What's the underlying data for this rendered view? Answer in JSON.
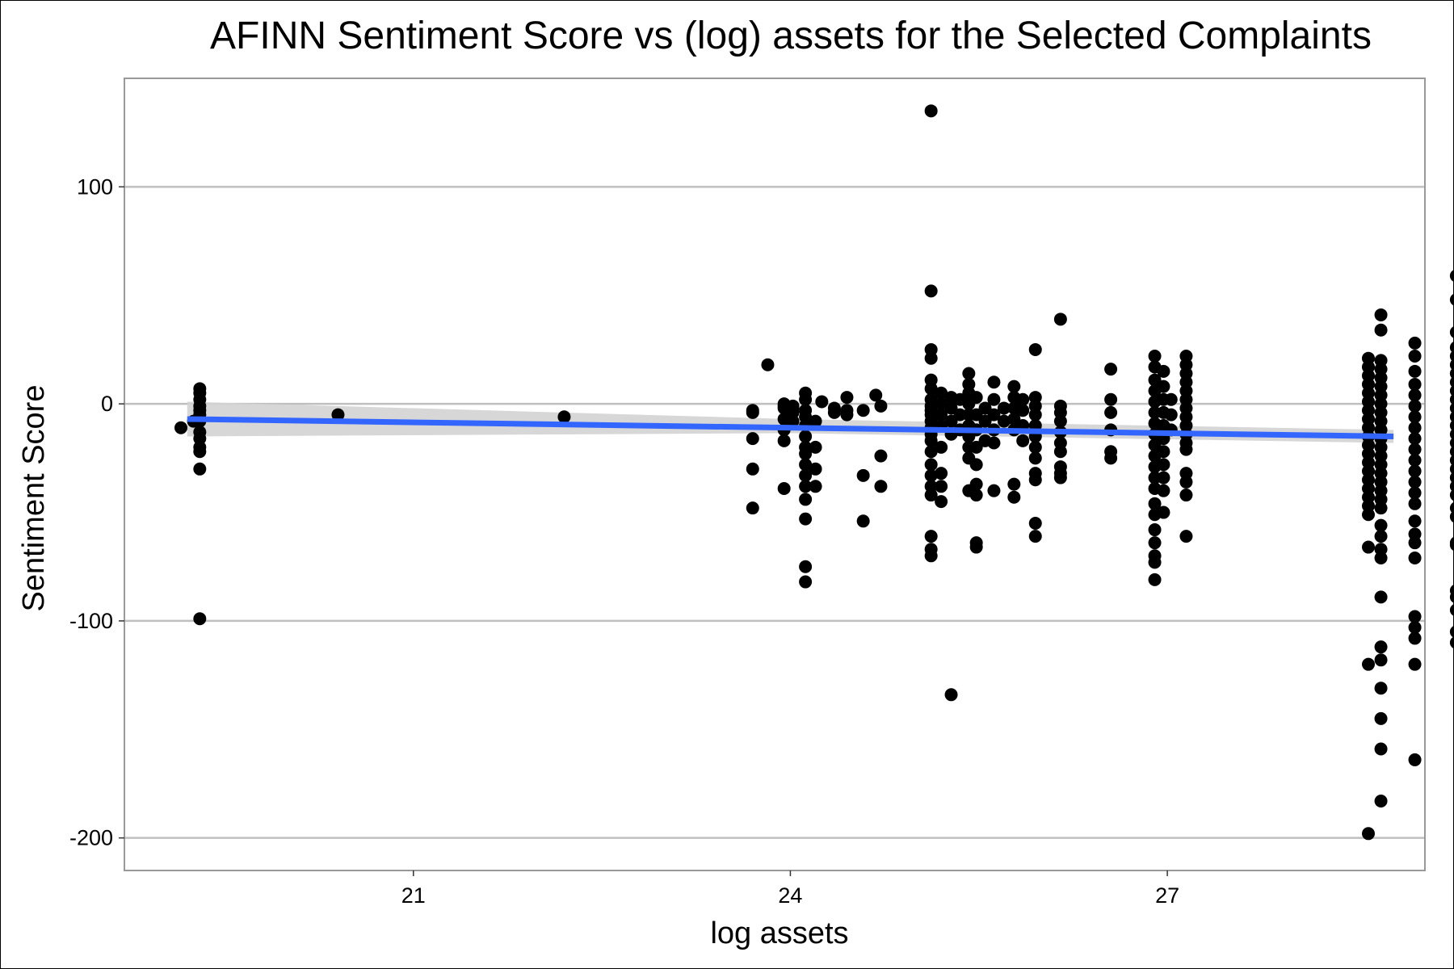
{
  "chart_data": {
    "type": "scatter",
    "title": "AFINN Sentiment Score vs (log) assets for the Selected Complaints",
    "xlabel": "log assets",
    "ylabel": "Sentiment Score",
    "xlim": [
      18.7,
      29.05
    ],
    "ylim": [
      -215,
      150
    ],
    "xticks": [
      21,
      24,
      27
    ],
    "yticks": [
      100,
      0,
      -100,
      -200
    ],
    "grid": "horizontal",
    "legend": "none",
    "colors": {
      "points": "#000000",
      "trend": "#3366ff",
      "ribbon": "#d3d3d3",
      "grid": "#bfbfbf",
      "panel_border": "#999999"
    },
    "trend": {
      "x_start": 19.2,
      "x_end": 28.8,
      "y_start": -7,
      "y_end": -15,
      "ci_start": [
        -15,
        1
      ],
      "ci_end": [
        -18,
        -12
      ],
      "ci_mid": [
        -13.5,
        -7
      ]
    },
    "points": [
      [
        19.15,
        -11
      ],
      [
        19.25,
        -8
      ],
      [
        19.3,
        7
      ],
      [
        19.3,
        5
      ],
      [
        19.3,
        2
      ],
      [
        19.3,
        -1
      ],
      [
        19.3,
        -3
      ],
      [
        19.3,
        -5
      ],
      [
        19.3,
        -8
      ],
      [
        19.3,
        -13
      ],
      [
        19.3,
        -16
      ],
      [
        19.3,
        -20
      ],
      [
        19.3,
        -22
      ],
      [
        19.3,
        -30
      ],
      [
        19.3,
        -99
      ],
      [
        20.4,
        -5
      ],
      [
        22.2,
        -6
      ],
      [
        23.7,
        -3
      ],
      [
        23.7,
        -4
      ],
      [
        23.7,
        -16
      ],
      [
        23.7,
        -30
      ],
      [
        23.7,
        -48
      ],
      [
        23.82,
        18
      ],
      [
        23.95,
        0
      ],
      [
        23.95,
        -1
      ],
      [
        23.95,
        -2
      ],
      [
        23.95,
        -7
      ],
      [
        23.95,
        -12
      ],
      [
        23.95,
        -17
      ],
      [
        23.95,
        -39
      ],
      [
        24.02,
        -1
      ],
      [
        24.02,
        -2
      ],
      [
        24.02,
        -4
      ],
      [
        24.02,
        -8
      ],
      [
        24.12,
        5
      ],
      [
        24.12,
        2
      ],
      [
        24.12,
        -3
      ],
      [
        24.12,
        -6
      ],
      [
        24.12,
        -10
      ],
      [
        24.12,
        -15
      ],
      [
        24.12,
        -20
      ],
      [
        24.12,
        -23
      ],
      [
        24.12,
        -28
      ],
      [
        24.12,
        -33
      ],
      [
        24.12,
        -38
      ],
      [
        24.12,
        -44
      ],
      [
        24.12,
        -53
      ],
      [
        24.12,
        -75
      ],
      [
        24.12,
        -82
      ],
      [
        24.2,
        -8
      ],
      [
        24.2,
        -20
      ],
      [
        24.2,
        -30
      ],
      [
        24.2,
        -38
      ],
      [
        24.25,
        1
      ],
      [
        24.35,
        -2
      ],
      [
        24.35,
        -4
      ],
      [
        24.45,
        3
      ],
      [
        24.45,
        -3
      ],
      [
        24.45,
        -5
      ],
      [
        24.58,
        -3
      ],
      [
        24.58,
        -33
      ],
      [
        24.58,
        -54
      ],
      [
        24.68,
        4
      ],
      [
        24.72,
        -1
      ],
      [
        24.72,
        -24
      ],
      [
        24.72,
        -38
      ],
      [
        25.12,
        135
      ],
      [
        25.12,
        52
      ],
      [
        25.12,
        25
      ],
      [
        25.12,
        21
      ],
      [
        25.12,
        11
      ],
      [
        25.12,
        7
      ],
      [
        25.12,
        2
      ],
      [
        25.12,
        -1
      ],
      [
        25.12,
        -3
      ],
      [
        25.12,
        -5
      ],
      [
        25.12,
        -8
      ],
      [
        25.12,
        -11
      ],
      [
        25.12,
        -14
      ],
      [
        25.12,
        -17
      ],
      [
        25.12,
        -22
      ],
      [
        25.12,
        -28
      ],
      [
        25.12,
        -33
      ],
      [
        25.12,
        -38
      ],
      [
        25.12,
        -42
      ],
      [
        25.12,
        -61
      ],
      [
        25.12,
        -67
      ],
      [
        25.12,
        -70
      ],
      [
        25.2,
        5
      ],
      [
        25.2,
        0
      ],
      [
        25.2,
        -5
      ],
      [
        25.2,
        -10
      ],
      [
        25.2,
        -20
      ],
      [
        25.2,
        -32
      ],
      [
        25.2,
        -38
      ],
      [
        25.2,
        -45
      ],
      [
        25.28,
        3
      ],
      [
        25.28,
        -2
      ],
      [
        25.28,
        -8
      ],
      [
        25.28,
        -14
      ],
      [
        25.28,
        -134
      ],
      [
        25.35,
        2
      ],
      [
        25.35,
        -5
      ],
      [
        25.35,
        -12
      ],
      [
        25.42,
        14
      ],
      [
        25.42,
        9
      ],
      [
        25.42,
        5
      ],
      [
        25.42,
        0
      ],
      [
        25.42,
        -5
      ],
      [
        25.42,
        -10
      ],
      [
        25.42,
        -15
      ],
      [
        25.42,
        -20
      ],
      [
        25.42,
        -25
      ],
      [
        25.42,
        -40
      ],
      [
        25.48,
        3
      ],
      [
        25.48,
        -5
      ],
      [
        25.48,
        -12
      ],
      [
        25.48,
        -20
      ],
      [
        25.48,
        -28
      ],
      [
        25.48,
        -37
      ],
      [
        25.48,
        -42
      ],
      [
        25.48,
        -64
      ],
      [
        25.48,
        -66
      ],
      [
        25.55,
        -2
      ],
      [
        25.55,
        -8
      ],
      [
        25.55,
        -17
      ],
      [
        25.62,
        10
      ],
      [
        25.62,
        2
      ],
      [
        25.62,
        -5
      ],
      [
        25.62,
        -12
      ],
      [
        25.62,
        -18
      ],
      [
        25.62,
        -40
      ],
      [
        25.7,
        -2
      ],
      [
        25.7,
        -8
      ],
      [
        25.78,
        8
      ],
      [
        25.78,
        3
      ],
      [
        25.78,
        -2
      ],
      [
        25.78,
        -7
      ],
      [
        25.78,
        -12
      ],
      [
        25.78,
        -37
      ],
      [
        25.78,
        -43
      ],
      [
        25.85,
        2
      ],
      [
        25.85,
        -3
      ],
      [
        25.85,
        -10
      ],
      [
        25.85,
        -17
      ],
      [
        25.95,
        25
      ],
      [
        25.95,
        3
      ],
      [
        25.95,
        -1
      ],
      [
        25.95,
        -5
      ],
      [
        25.95,
        -10
      ],
      [
        25.95,
        -15
      ],
      [
        25.95,
        -20
      ],
      [
        25.95,
        -25
      ],
      [
        25.95,
        -32
      ],
      [
        25.95,
        -35
      ],
      [
        25.95,
        -55
      ],
      [
        25.95,
        -61
      ],
      [
        26.15,
        39
      ],
      [
        26.15,
        -1
      ],
      [
        26.15,
        -4
      ],
      [
        26.15,
        -8
      ],
      [
        26.15,
        -13
      ],
      [
        26.15,
        -18
      ],
      [
        26.15,
        -22
      ],
      [
        26.15,
        -29
      ],
      [
        26.15,
        -32
      ],
      [
        26.15,
        -34
      ],
      [
        26.55,
        16
      ],
      [
        26.55,
        2
      ],
      [
        26.55,
        -4
      ],
      [
        26.55,
        -12
      ],
      [
        26.55,
        -22
      ],
      [
        26.55,
        -25
      ],
      [
        26.9,
        22
      ],
      [
        26.9,
        17
      ],
      [
        26.9,
        11
      ],
      [
        26.9,
        6
      ],
      [
        26.9,
        1
      ],
      [
        26.9,
        -4
      ],
      [
        26.9,
        -9
      ],
      [
        26.9,
        -14
      ],
      [
        26.9,
        -19
      ],
      [
        26.9,
        -24
      ],
      [
        26.9,
        -29
      ],
      [
        26.9,
        -34
      ],
      [
        26.9,
        -39
      ],
      [
        26.9,
        -46
      ],
      [
        26.9,
        -51
      ],
      [
        26.9,
        -58
      ],
      [
        26.9,
        -64
      ],
      [
        26.9,
        -70
      ],
      [
        26.9,
        -73
      ],
      [
        26.9,
        -81
      ],
      [
        26.97,
        15
      ],
      [
        26.97,
        8
      ],
      [
        26.97,
        2
      ],
      [
        26.97,
        -4
      ],
      [
        26.97,
        -10
      ],
      [
        26.97,
        -16
      ],
      [
        26.97,
        -22
      ],
      [
        26.97,
        -28
      ],
      [
        26.97,
        -34
      ],
      [
        26.97,
        -40
      ],
      [
        26.97,
        -50
      ],
      [
        27.03,
        2
      ],
      [
        27.03,
        -5
      ],
      [
        27.03,
        -12
      ],
      [
        27.15,
        22
      ],
      [
        27.15,
        18
      ],
      [
        27.15,
        14
      ],
      [
        27.15,
        10
      ],
      [
        27.15,
        6
      ],
      [
        27.15,
        2
      ],
      [
        27.15,
        -2
      ],
      [
        27.15,
        -6
      ],
      [
        27.15,
        -10
      ],
      [
        27.15,
        -14
      ],
      [
        27.15,
        -18
      ],
      [
        27.15,
        -21
      ],
      [
        27.15,
        -32
      ],
      [
        27.15,
        -36
      ],
      [
        27.15,
        -42
      ],
      [
        27.15,
        -61
      ],
      [
        28.6,
        21
      ],
      [
        28.6,
        17
      ],
      [
        28.6,
        13
      ],
      [
        28.6,
        9
      ],
      [
        28.6,
        5
      ],
      [
        28.6,
        1
      ],
      [
        28.6,
        -3
      ],
      [
        28.6,
        -7
      ],
      [
        28.6,
        -11
      ],
      [
        28.6,
        -15
      ],
      [
        28.6,
        -19
      ],
      [
        28.6,
        -23
      ],
      [
        28.6,
        -27
      ],
      [
        28.6,
        -31
      ],
      [
        28.6,
        -35
      ],
      [
        28.6,
        -39
      ],
      [
        28.6,
        -43
      ],
      [
        28.6,
        -47
      ],
      [
        28.6,
        -51
      ],
      [
        28.6,
        -66
      ],
      [
        28.6,
        -120
      ],
      [
        28.6,
        -198
      ],
      [
        28.7,
        41
      ],
      [
        28.7,
        34
      ],
      [
        28.7,
        20
      ],
      [
        28.7,
        16
      ],
      [
        28.7,
        12
      ],
      [
        28.7,
        8
      ],
      [
        28.7,
        4
      ],
      [
        28.7,
        0
      ],
      [
        28.7,
        -4
      ],
      [
        28.7,
        -8
      ],
      [
        28.7,
        -12
      ],
      [
        28.7,
        -16
      ],
      [
        28.7,
        -20
      ],
      [
        28.7,
        -24
      ],
      [
        28.7,
        -28
      ],
      [
        28.7,
        -32
      ],
      [
        28.7,
        -36
      ],
      [
        28.7,
        -40
      ],
      [
        28.7,
        -44
      ],
      [
        28.7,
        -48
      ],
      [
        28.7,
        -56
      ],
      [
        28.7,
        -61
      ],
      [
        28.7,
        -67
      ],
      [
        28.7,
        -71
      ],
      [
        28.7,
        -89
      ],
      [
        28.7,
        -112
      ],
      [
        28.7,
        -118
      ],
      [
        28.7,
        -131
      ],
      [
        28.7,
        -145
      ],
      [
        28.7,
        -159
      ],
      [
        28.7,
        -183
      ],
      [
        28.97,
        28
      ],
      [
        28.97,
        22
      ],
      [
        28.97,
        15
      ],
      [
        28.97,
        9
      ],
      [
        28.97,
        4
      ],
      [
        28.97,
        -1
      ],
      [
        28.97,
        -6
      ],
      [
        28.97,
        -11
      ],
      [
        28.97,
        -16
      ],
      [
        28.97,
        -21
      ],
      [
        28.97,
        -26
      ],
      [
        28.97,
        -31
      ],
      [
        28.97,
        -36
      ],
      [
        28.97,
        -41
      ],
      [
        28.97,
        -46
      ],
      [
        28.97,
        -54
      ],
      [
        28.97,
        -60
      ],
      [
        28.97,
        -64
      ],
      [
        28.97,
        -71
      ],
      [
        28.97,
        -98
      ],
      [
        28.97,
        -103
      ],
      [
        28.97,
        -108
      ],
      [
        28.97,
        -120
      ],
      [
        28.97,
        -164
      ],
      [
        29.3,
        59
      ],
      [
        29.3,
        48
      ],
      [
        29.3,
        33
      ],
      [
        29.3,
        26
      ],
      [
        29.3,
        22
      ],
      [
        29.3,
        18
      ],
      [
        29.3,
        14
      ],
      [
        29.3,
        10
      ],
      [
        29.3,
        6
      ],
      [
        29.3,
        2
      ],
      [
        29.3,
        -2
      ],
      [
        29.3,
        -6
      ],
      [
        29.3,
        -10
      ],
      [
        29.3,
        -14
      ],
      [
        29.3,
        -18
      ],
      [
        29.3,
        -22
      ],
      [
        29.3,
        -26
      ],
      [
        29.3,
        -30
      ],
      [
        29.3,
        -34
      ],
      [
        29.3,
        -38
      ],
      [
        29.3,
        -42
      ],
      [
        29.3,
        -48
      ],
      [
        29.3,
        -52
      ],
      [
        29.3,
        -64
      ],
      [
        29.3,
        -65
      ],
      [
        29.3,
        -86
      ],
      [
        29.3,
        -89
      ],
      [
        29.3,
        -95
      ],
      [
        29.3,
        -105
      ],
      [
        29.3,
        -110
      ]
    ]
  }
}
